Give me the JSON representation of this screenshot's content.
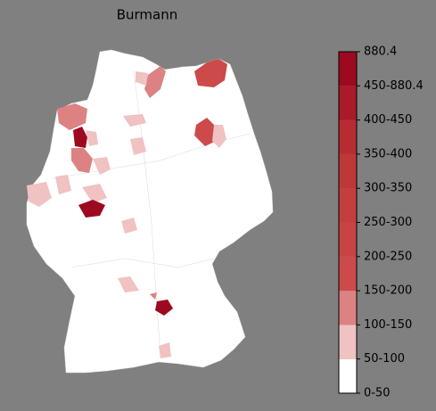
{
  "map": {
    "title": "Burmann",
    "legend": {
      "ticks": [
        "0-50",
        "50-100",
        "100-150",
        "150-200",
        "200-250",
        "250-300",
        "300-350",
        "350-400",
        "400-450",
        "450-880.4",
        "880.4"
      ],
      "colors": [
        "#ffffff",
        "#f0c2c2",
        "#dc8282",
        "#cc4a4a",
        "#c84444",
        "#c43e3e",
        "#be3838",
        "#b62c31",
        "#aa1a28",
        "#9d0a20"
      ]
    }
  }
}
